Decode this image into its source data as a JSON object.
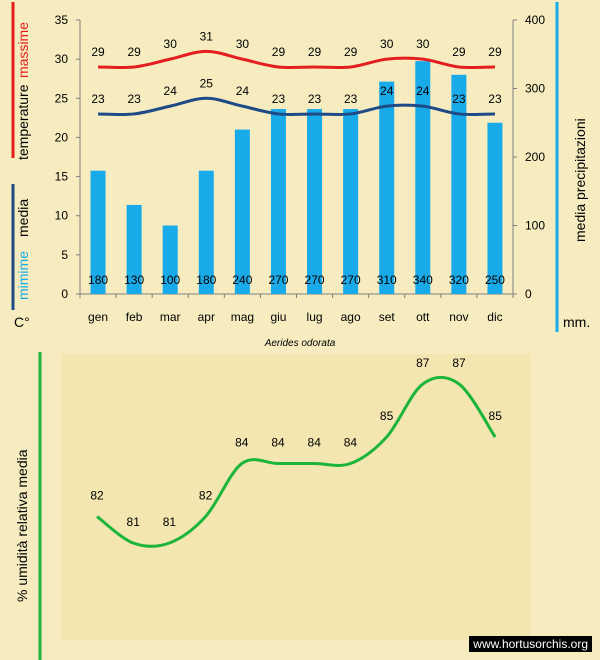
{
  "chart_data": [
    {
      "type": "bar",
      "title": "Aerides odorata",
      "categories": [
        "gen",
        "feb",
        "mar",
        "apr",
        "mag",
        "giu",
        "lug",
        "ago",
        "set",
        "ott",
        "nov",
        "dic"
      ],
      "series": [
        {
          "name": "media precipitazioni",
          "axis": "right",
          "values": [
            180,
            130,
            100,
            180,
            240,
            270,
            270,
            270,
            310,
            340,
            320,
            250
          ]
        },
        {
          "name": "massime",
          "type": "line",
          "axis": "left",
          "values": [
            29,
            29,
            30,
            31,
            30,
            29,
            29,
            29,
            30,
            30,
            29,
            29
          ]
        },
        {
          "name": "mimime",
          "type": "line",
          "axis": "left",
          "values": [
            23,
            23,
            24,
            25,
            24,
            23,
            23,
            23,
            24,
            24,
            23,
            23
          ]
        }
      ],
      "ylim_left": [
        0,
        35
      ],
      "yticks_left": [
        0,
        5,
        10,
        15,
        20,
        25,
        30,
        35
      ],
      "ylim_right": [
        0,
        400
      ],
      "yticks_right": [
        0,
        100,
        200,
        300,
        400
      ],
      "ylabel_left": {
        "max": "massime",
        "mid": "temperature",
        "media": "media",
        "min": "mimime",
        "unit": "C°"
      },
      "ylabel_right": {
        "text": "media  precipitazioni",
        "unit": "mm."
      },
      "grid": false,
      "colors": {
        "bars": "#19aaea",
        "max_line": "#e41e1e",
        "min_line": "#1e4a86",
        "left_red_bar": "#e41e1e",
        "left_blue_bar": "#1e4a86",
        "right_bar": "#19aaea"
      }
    },
    {
      "type": "line",
      "categories": [
        "gen",
        "feb",
        "mar",
        "apr",
        "mag",
        "giu",
        "lug",
        "ago",
        "set",
        "ott",
        "nov",
        "dic"
      ],
      "series": [
        {
          "values": [
            82,
            81,
            81,
            82,
            84,
            84,
            84,
            84,
            85,
            87,
            87,
            85
          ]
        }
      ],
      "ylabel": "% umidità  relativa media",
      "colors": {
        "line": "#1cb53a",
        "axis_bar": "#1cb53a",
        "panel": "#f3e6b0"
      }
    }
  ],
  "watermark": "www.hortusorchis.org"
}
